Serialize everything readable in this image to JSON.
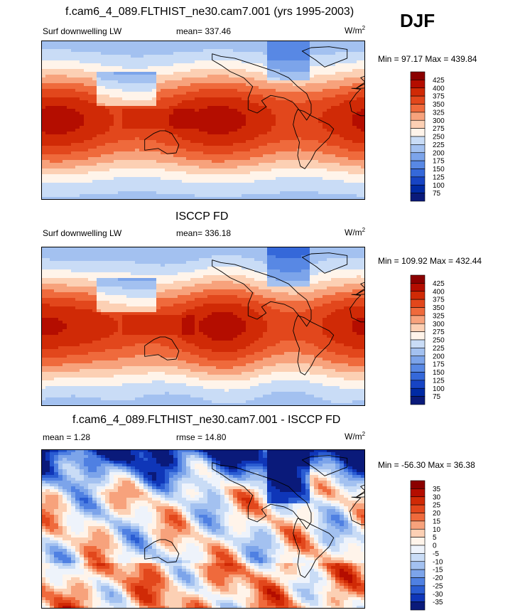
{
  "header": {
    "season": "DJF"
  },
  "chart_data": [
    {
      "type": "heatmap",
      "title": "f.cam6_4_089.FLTHIST_ne30.cam7.001 (yrs 1995-2003)",
      "variable": "Surf downwelling LW",
      "stat_label": "mean= 337.46",
      "units_base": "W/m",
      "units_exp": "2",
      "minmax": "Min =  97.17 Max = 439.84",
      "palette": "warm",
      "levels": [
        425,
        400,
        375,
        350,
        325,
        300,
        275,
        250,
        225,
        200,
        175,
        150,
        125,
        100,
        75
      ],
      "colors": [
        "#8b0000",
        "#b40d00",
        "#d02a06",
        "#e2471c",
        "#ef6a3c",
        "#f7a27c",
        "#fcd0b4",
        "#fff4ea",
        "#c9dcf6",
        "#a3c1f0",
        "#7ca4ea",
        "#5888e4",
        "#3568d9",
        "#1744c4",
        "#002aa4",
        "#0a1a7a"
      ]
    },
    {
      "type": "heatmap",
      "title": "ISCCP FD",
      "variable": "Surf downwelling LW",
      "stat_label": "mean= 336.18",
      "units_base": "W/m",
      "units_exp": "2",
      "minmax": "Min = 109.92 Max = 432.44",
      "palette": "warm",
      "levels": [
        425,
        400,
        375,
        350,
        325,
        300,
        275,
        250,
        225,
        200,
        175,
        150,
        125,
        100,
        75
      ],
      "colors": [
        "#8b0000",
        "#b40d00",
        "#d02a06",
        "#e2471c",
        "#ef6a3c",
        "#f7a27c",
        "#fcd0b4",
        "#fff4ea",
        "#c9dcf6",
        "#a3c1f0",
        "#7ca4ea",
        "#5888e4",
        "#3568d9",
        "#1744c4",
        "#002aa4",
        "#0a1a7a"
      ]
    },
    {
      "type": "heatmap",
      "title": "f.cam6_4_089.FLTHIST_ne30.cam7.001 - ISCCP FD",
      "variable": "mean =   1.28",
      "stat_label": "rmse =  14.80",
      "units_base": "W/m",
      "units_exp": "2",
      "minmax": "Min = -56.30 Max =  36.38",
      "palette": "diff",
      "levels": [
        35,
        30,
        25,
        20,
        15,
        10,
        5,
        0,
        -5,
        -10,
        -15,
        -20,
        -25,
        -30,
        -35
      ],
      "colors": [
        "#8b0000",
        "#b40d00",
        "#d02a06",
        "#e2471c",
        "#ef6a3c",
        "#f7a27c",
        "#fcd0b4",
        "#fff4ea",
        "#eef3fb",
        "#c9dcf6",
        "#a3c1f0",
        "#7ca4ea",
        "#4f80e2",
        "#2a5cd2",
        "#0f36b8",
        "#0a1a7a"
      ]
    }
  ]
}
